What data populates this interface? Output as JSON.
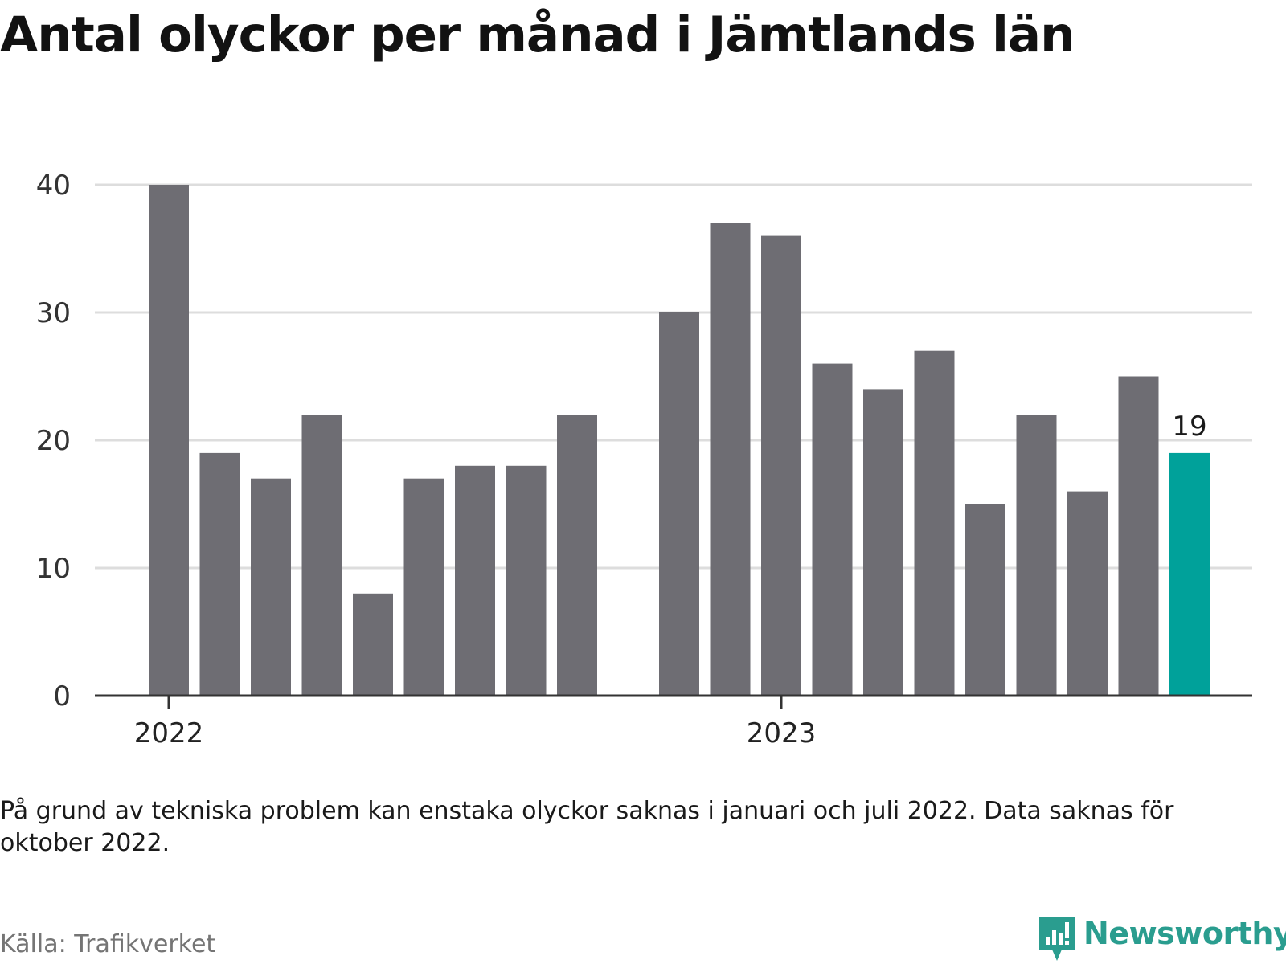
{
  "title": "Antal olyckor per månad i Jämtlands län",
  "note": "På grund av tekniska problem kan enstaka olyckor saknas i januari och juli 2022. Data saknas för oktober 2022.",
  "source": "Källa: Trafikverket",
  "brand": "Newsworthy",
  "colors": {
    "bar": "#6e6d73",
    "highlight": "#00a19a",
    "grid": "#dddddd",
    "axis": "#333333",
    "brand": "#2a9d8f"
  },
  "chart_data": {
    "type": "bar",
    "x_tick_labels": [
      "2022",
      "2023"
    ],
    "y_ticks": [
      0,
      10,
      20,
      30,
      40
    ],
    "ylim": [
      0,
      40
    ],
    "grid": true,
    "bars": [
      {
        "month": "2022-01",
        "value": 40
      },
      {
        "month": "2022-02",
        "value": 19
      },
      {
        "month": "2022-03",
        "value": 17
      },
      {
        "month": "2022-04",
        "value": 22
      },
      {
        "month": "2022-05",
        "value": 8
      },
      {
        "month": "2022-06",
        "value": 17
      },
      {
        "month": "2022-07",
        "value": 18
      },
      {
        "month": "2022-08",
        "value": 18
      },
      {
        "month": "2022-09",
        "value": 22
      },
      {
        "month": "2022-10",
        "value": null
      },
      {
        "month": "2022-11",
        "value": 30
      },
      {
        "month": "2022-12",
        "value": 37
      },
      {
        "month": "2023-01",
        "value": 36
      },
      {
        "month": "2023-02",
        "value": 26
      },
      {
        "month": "2023-03",
        "value": 24
      },
      {
        "month": "2023-04",
        "value": 27
      },
      {
        "month": "2023-05",
        "value": 15
      },
      {
        "month": "2023-06",
        "value": 22
      },
      {
        "month": "2023-07",
        "value": 16
      },
      {
        "month": "2023-08",
        "value": 25
      },
      {
        "month": "2023-09",
        "value": 19
      }
    ],
    "highlight_index": 20,
    "highlight_label": "19"
  }
}
